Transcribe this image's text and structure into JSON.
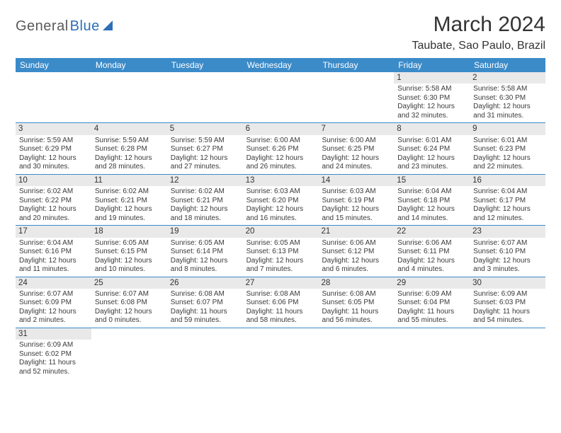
{
  "logo": {
    "general": "General",
    "blue": "Blue"
  },
  "month_title": "March 2024",
  "location": "Taubate, Sao Paulo, Brazil",
  "colors": {
    "header_bg": "#3b8bc9",
    "header_text": "#ffffff",
    "daynum_bg": "#e9e9e9",
    "week_border": "#3b8bc9",
    "body_text": "#3a3a3a",
    "title_text": "#333333"
  },
  "typography": {
    "month_fontsize": 30,
    "location_fontsize": 16,
    "dayheader_fontsize": 12,
    "cell_fontsize": 10
  },
  "day_names": [
    "Sunday",
    "Monday",
    "Tuesday",
    "Wednesday",
    "Thursday",
    "Friday",
    "Saturday"
  ],
  "weeks": [
    [
      null,
      null,
      null,
      null,
      null,
      {
        "d": "1",
        "sr": "5:58 AM",
        "ss": "6:30 PM",
        "dl1": "12 hours",
        "dl2": "and 32 minutes."
      },
      {
        "d": "2",
        "sr": "5:58 AM",
        "ss": "6:30 PM",
        "dl1": "12 hours",
        "dl2": "and 31 minutes."
      }
    ],
    [
      {
        "d": "3",
        "sr": "5:59 AM",
        "ss": "6:29 PM",
        "dl1": "12 hours",
        "dl2": "and 30 minutes."
      },
      {
        "d": "4",
        "sr": "5:59 AM",
        "ss": "6:28 PM",
        "dl1": "12 hours",
        "dl2": "and 28 minutes."
      },
      {
        "d": "5",
        "sr": "5:59 AM",
        "ss": "6:27 PM",
        "dl1": "12 hours",
        "dl2": "and 27 minutes."
      },
      {
        "d": "6",
        "sr": "6:00 AM",
        "ss": "6:26 PM",
        "dl1": "12 hours",
        "dl2": "and 26 minutes."
      },
      {
        "d": "7",
        "sr": "6:00 AM",
        "ss": "6:25 PM",
        "dl1": "12 hours",
        "dl2": "and 24 minutes."
      },
      {
        "d": "8",
        "sr": "6:01 AM",
        "ss": "6:24 PM",
        "dl1": "12 hours",
        "dl2": "and 23 minutes."
      },
      {
        "d": "9",
        "sr": "6:01 AM",
        "ss": "6:23 PM",
        "dl1": "12 hours",
        "dl2": "and 22 minutes."
      }
    ],
    [
      {
        "d": "10",
        "sr": "6:02 AM",
        "ss": "6:22 PM",
        "dl1": "12 hours",
        "dl2": "and 20 minutes."
      },
      {
        "d": "11",
        "sr": "6:02 AM",
        "ss": "6:21 PM",
        "dl1": "12 hours",
        "dl2": "and 19 minutes."
      },
      {
        "d": "12",
        "sr": "6:02 AM",
        "ss": "6:21 PM",
        "dl1": "12 hours",
        "dl2": "and 18 minutes."
      },
      {
        "d": "13",
        "sr": "6:03 AM",
        "ss": "6:20 PM",
        "dl1": "12 hours",
        "dl2": "and 16 minutes."
      },
      {
        "d": "14",
        "sr": "6:03 AM",
        "ss": "6:19 PM",
        "dl1": "12 hours",
        "dl2": "and 15 minutes."
      },
      {
        "d": "15",
        "sr": "6:04 AM",
        "ss": "6:18 PM",
        "dl1": "12 hours",
        "dl2": "and 14 minutes."
      },
      {
        "d": "16",
        "sr": "6:04 AM",
        "ss": "6:17 PM",
        "dl1": "12 hours",
        "dl2": "and 12 minutes."
      }
    ],
    [
      {
        "d": "17",
        "sr": "6:04 AM",
        "ss": "6:16 PM",
        "dl1": "12 hours",
        "dl2": "and 11 minutes."
      },
      {
        "d": "18",
        "sr": "6:05 AM",
        "ss": "6:15 PM",
        "dl1": "12 hours",
        "dl2": "and 10 minutes."
      },
      {
        "d": "19",
        "sr": "6:05 AM",
        "ss": "6:14 PM",
        "dl1": "12 hours",
        "dl2": "and 8 minutes."
      },
      {
        "d": "20",
        "sr": "6:05 AM",
        "ss": "6:13 PM",
        "dl1": "12 hours",
        "dl2": "and 7 minutes."
      },
      {
        "d": "21",
        "sr": "6:06 AM",
        "ss": "6:12 PM",
        "dl1": "12 hours",
        "dl2": "and 6 minutes."
      },
      {
        "d": "22",
        "sr": "6:06 AM",
        "ss": "6:11 PM",
        "dl1": "12 hours",
        "dl2": "and 4 minutes."
      },
      {
        "d": "23",
        "sr": "6:07 AM",
        "ss": "6:10 PM",
        "dl1": "12 hours",
        "dl2": "and 3 minutes."
      }
    ],
    [
      {
        "d": "24",
        "sr": "6:07 AM",
        "ss": "6:09 PM",
        "dl1": "12 hours",
        "dl2": "and 2 minutes."
      },
      {
        "d": "25",
        "sr": "6:07 AM",
        "ss": "6:08 PM",
        "dl1": "12 hours",
        "dl2": "and 0 minutes."
      },
      {
        "d": "26",
        "sr": "6:08 AM",
        "ss": "6:07 PM",
        "dl1": "11 hours",
        "dl2": "and 59 minutes."
      },
      {
        "d": "27",
        "sr": "6:08 AM",
        "ss": "6:06 PM",
        "dl1": "11 hours",
        "dl2": "and 58 minutes."
      },
      {
        "d": "28",
        "sr": "6:08 AM",
        "ss": "6:05 PM",
        "dl1": "11 hours",
        "dl2": "and 56 minutes."
      },
      {
        "d": "29",
        "sr": "6:09 AM",
        "ss": "6:04 PM",
        "dl1": "11 hours",
        "dl2": "and 55 minutes."
      },
      {
        "d": "30",
        "sr": "6:09 AM",
        "ss": "6:03 PM",
        "dl1": "11 hours",
        "dl2": "and 54 minutes."
      }
    ],
    [
      {
        "d": "31",
        "sr": "6:09 AM",
        "ss": "6:02 PM",
        "dl1": "11 hours",
        "dl2": "and 52 minutes."
      },
      null,
      null,
      null,
      null,
      null,
      null
    ]
  ],
  "labels": {
    "sunrise": "Sunrise: ",
    "sunset": "Sunset: ",
    "daylight": "Daylight: "
  }
}
